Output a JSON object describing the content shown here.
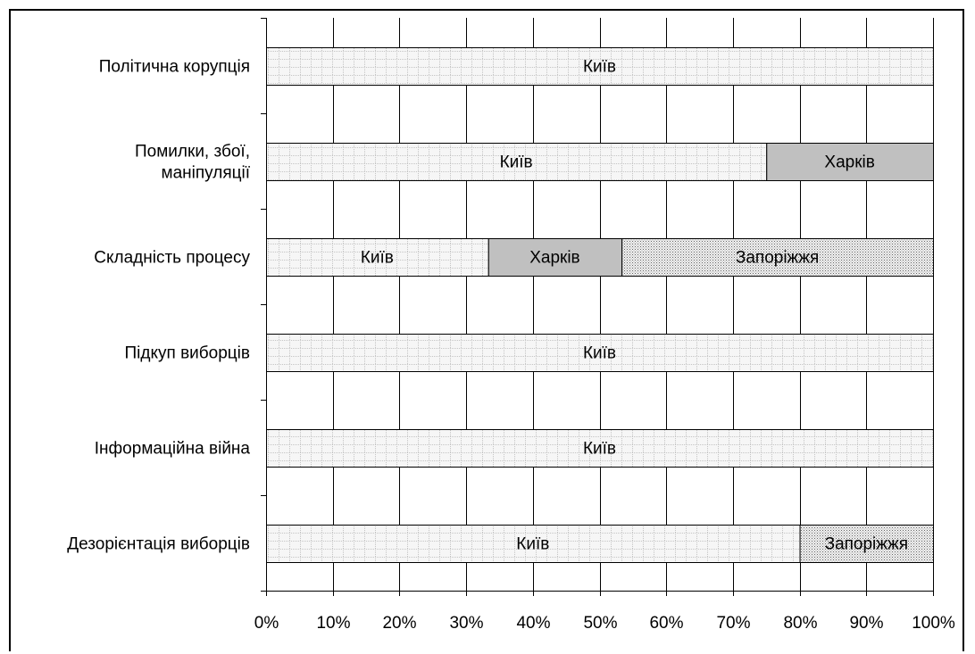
{
  "chart_data": {
    "type": "bar",
    "orientation": "horizontal",
    "stacked": "percent",
    "categories": [
      [
        "Політична корупція"
      ],
      [
        "Помилки, збої,",
        "маніпуляції"
      ],
      [
        "Складність процесу"
      ],
      [
        "Підкуп виборців"
      ],
      [
        "Інформаційна війна"
      ],
      [
        "Дезорієнтація виборців"
      ]
    ],
    "series": [
      {
        "name": "Київ",
        "values": [
          100,
          75,
          33.3,
          100,
          100,
          80
        ]
      },
      {
        "name": "Харків",
        "values": [
          0,
          25,
          20,
          0,
          0,
          0
        ]
      },
      {
        "name": "Запоріжжя",
        "values": [
          0,
          0,
          46.7,
          0,
          0,
          20
        ]
      }
    ],
    "xticks": [
      "0%",
      "10%",
      "20%",
      "30%",
      "40%",
      "50%",
      "60%",
      "70%",
      "80%",
      "90%",
      "100%"
    ],
    "xlim": [
      0,
      100
    ],
    "grid": true,
    "legend": "none",
    "data_labels": "series-name",
    "colors": {
      "Київ": "#f4f4f4",
      "Харків": "#c0c0c0",
      "Запоріжжя": "#eaeaea"
    }
  }
}
